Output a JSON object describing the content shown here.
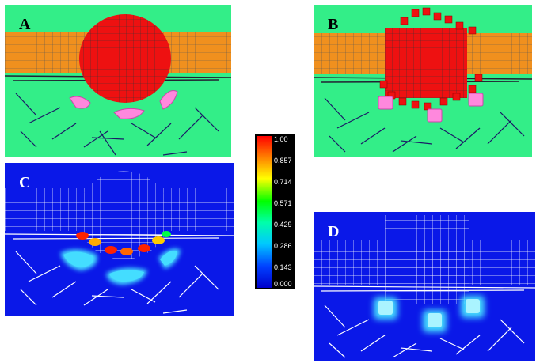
{
  "panels": {
    "a": {
      "letter": "A"
    },
    "b": {
      "letter": "B"
    },
    "c": {
      "letter": "C"
    },
    "d": {
      "letter": "D"
    }
  },
  "colorbar": {
    "ticks": [
      "1.00",
      "0.857",
      "0.714",
      "0.571",
      "0.429",
      "0.286",
      "0.143",
      "0.000"
    ]
  },
  "colors": {
    "green_tissue": "#33ee88",
    "orange_band": "#f0901e",
    "red_block": "#ee1111",
    "pink_cell": "#ff88dd",
    "blue_field": "#0a18e8",
    "cyan_glow": "#44ddff"
  }
}
